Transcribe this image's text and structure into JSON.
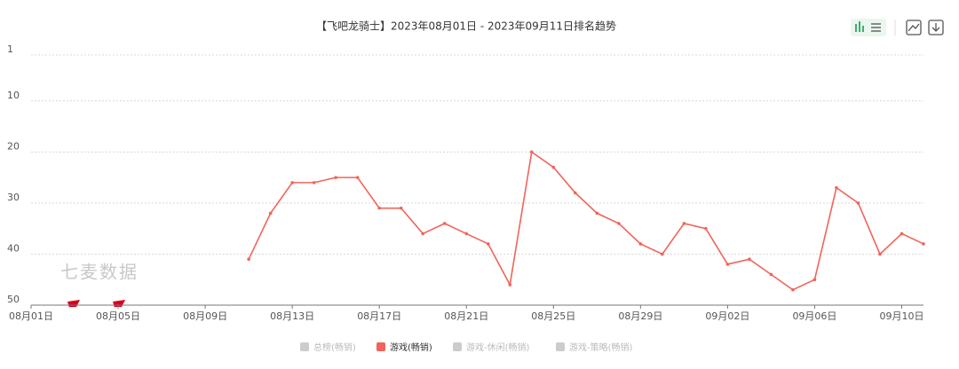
{
  "chart_data": {
    "type": "line",
    "title": "【飞吧龙骑士】2023年08月01日 - 2023年09月11日排名趋势",
    "watermark": "七麦数据",
    "categories": [
      "08月01日",
      null,
      null,
      null,
      "08月05日",
      null,
      null,
      null,
      "08月09日",
      null,
      null,
      null,
      "08月13日",
      null,
      null,
      null,
      "08月17日",
      null,
      null,
      null,
      "08月21日",
      null,
      null,
      null,
      "08月25日",
      null,
      null,
      null,
      "08月29日",
      null,
      null,
      null,
      "09月02日",
      null,
      null,
      null,
      "09月06日",
      null,
      null,
      null,
      "09月10日",
      null
    ],
    "series": [
      {
        "name": "总榜(畅销)",
        "color": "#cccccc",
        "visible": false,
        "values": [
          null,
          null,
          null,
          null,
          null,
          null,
          null,
          null,
          null,
          null,
          null,
          null,
          null,
          null,
          null,
          null,
          null,
          null,
          null,
          null,
          null,
          null,
          null,
          null,
          null,
          null,
          null,
          null,
          null,
          null,
          null,
          null,
          null,
          null,
          null,
          null,
          null,
          null,
          null,
          null,
          null,
          null
        ]
      },
      {
        "name": "游戏(畅销)",
        "color": "#f0645a",
        "visible": true,
        "values": [
          null,
          null,
          null,
          null,
          null,
          null,
          null,
          null,
          null,
          null,
          41,
          32,
          26,
          26,
          25,
          25,
          31,
          31,
          36,
          34,
          36,
          38,
          46,
          20,
          23,
          28,
          32,
          34,
          38,
          40,
          34,
          35,
          42,
          41,
          44,
          47,
          45,
          27,
          30,
          40,
          36,
          38
        ]
      },
      {
        "name": "游戏-休闲(畅销)",
        "color": "#cccccc",
        "visible": false,
        "values": [
          null,
          null,
          null,
          null,
          null,
          null,
          null,
          null,
          null,
          null,
          null,
          null,
          null,
          null,
          null,
          null,
          null,
          null,
          null,
          null,
          null,
          null,
          null,
          null,
          null,
          null,
          null,
          null,
          null,
          null,
          null,
          null,
          null,
          null,
          null,
          null,
          null,
          null,
          null,
          null,
          null,
          null
        ]
      },
      {
        "name": "游戏-策略(畅销)",
        "color": "#cccccc",
        "visible": false,
        "values": [
          null,
          null,
          null,
          null,
          null,
          null,
          null,
          null,
          null,
          null,
          null,
          null,
          null,
          null,
          null,
          null,
          null,
          null,
          null,
          null,
          null,
          null,
          null,
          null,
          null,
          null,
          null,
          null,
          null,
          null,
          null,
          null,
          null,
          null,
          null,
          null,
          null,
          null,
          null,
          null,
          null,
          null
        ]
      }
    ],
    "ylim": [
      1,
      50
    ],
    "y_inverted": true,
    "yticks": [
      1,
      10,
      20,
      30,
      40,
      50
    ],
    "grid": true
  }
}
